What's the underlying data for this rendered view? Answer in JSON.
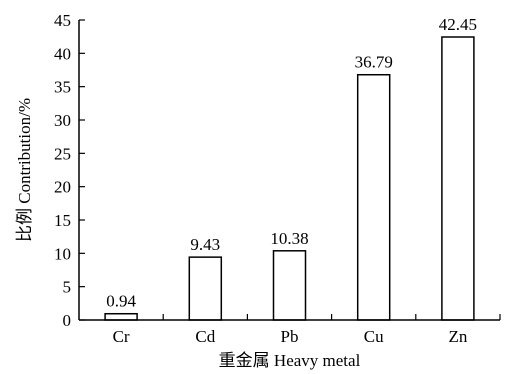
{
  "chart_data": {
    "type": "bar",
    "title": "",
    "categories": [
      "Cr",
      "Cd",
      "Pb",
      "Cu",
      "Zn"
    ],
    "values": [
      0.94,
      9.43,
      10.38,
      36.79,
      42.45
    ],
    "data_labels": [
      "0.94",
      "9.43",
      "10.38",
      "36.79",
      "42.45"
    ],
    "xlabel": "重金属 Heavy metal",
    "ylabel": "比例 Contribution/%",
    "ylim": [
      0,
      45
    ],
    "yticks": [
      0,
      5,
      10,
      15,
      20,
      25,
      30,
      35,
      40,
      45
    ],
    "grid": false,
    "legend": "none"
  }
}
